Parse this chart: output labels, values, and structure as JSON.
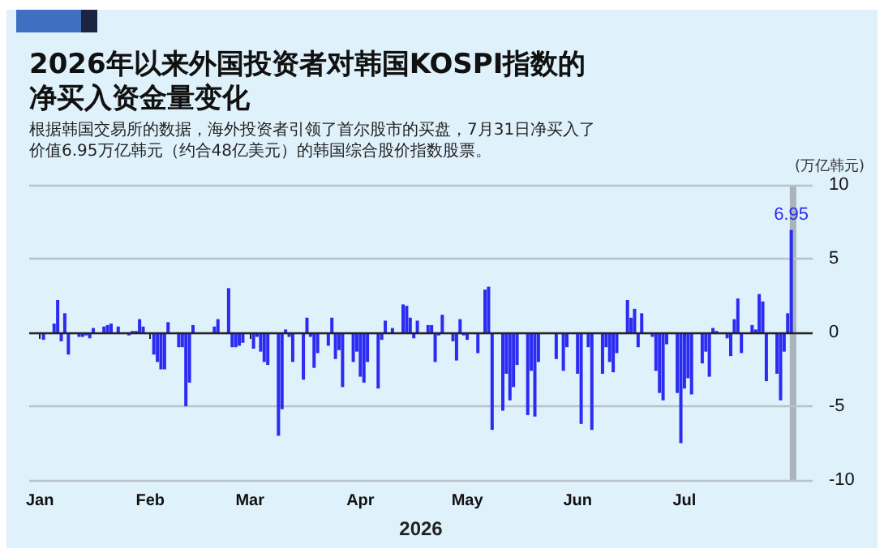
{
  "chart_data": {
    "type": "bar",
    "title": "2026年以来外国投资者对韩国KOSPI指数的净买入资金量变化",
    "subtitle": "根据韩国交易所的数据，海外投资者引领了首尔股市的买盘，7月31日净买入了价值6.95万亿韩元（约合48亿美元）的韩国综合股价指数股票。",
    "ylabel": "(万亿韩元)",
    "xlabel": "2026",
    "x": [
      "2026-01-02",
      "2026-01-05",
      "2026-01-06",
      "2026-01-07",
      "2026-01-08",
      "2026-01-09",
      "2026-01-12",
      "2026-01-13",
      "2026-01-14",
      "2026-01-15",
      "2026-01-16",
      "2026-01-19",
      "2026-01-20",
      "2026-01-21",
      "2026-01-22",
      "2026-01-23",
      "2026-01-26",
      "2026-01-27",
      "2026-01-28",
      "2026-01-29",
      "2026-01-30",
      "2026-02-02",
      "2026-02-03",
      "2026-02-04",
      "2026-02-05",
      "2026-02-06",
      "2026-02-09",
      "2026-02-10",
      "2026-02-11",
      "2026-02-12",
      "2026-02-13",
      "2026-02-19",
      "2026-02-20",
      "2026-02-23",
      "2026-02-24",
      "2026-02-25",
      "2026-02-26",
      "2026-02-27",
      "2026-03-02",
      "2026-03-03",
      "2026-03-04",
      "2026-03-05",
      "2026-03-06",
      "2026-03-09",
      "2026-03-10",
      "2026-03-11",
      "2026-03-12",
      "2026-03-13",
      "2026-03-16",
      "2026-03-17",
      "2026-03-18",
      "2026-03-19",
      "2026-03-20",
      "2026-03-23",
      "2026-03-24",
      "2026-03-25",
      "2026-03-26",
      "2026-03-27",
      "2026-03-30",
      "2026-03-31",
      "2026-04-01",
      "2026-04-02",
      "2026-04-03",
      "2026-04-06",
      "2026-04-07",
      "2026-04-08",
      "2026-04-09",
      "2026-04-10",
      "2026-04-13",
      "2026-04-14",
      "2026-04-15",
      "2026-04-16",
      "2026-04-17",
      "2026-04-20",
      "2026-04-21",
      "2026-04-22",
      "2026-04-23",
      "2026-04-24",
      "2026-04-27",
      "2026-04-28",
      "2026-04-29",
      "2026-04-30",
      "2026-05-01",
      "2026-05-04",
      "2026-05-06",
      "2026-05-07",
      "2026-05-08",
      "2026-05-11",
      "2026-05-12",
      "2026-05-13",
      "2026-05-14",
      "2026-05-15",
      "2026-05-18",
      "2026-05-19",
      "2026-05-20",
      "2026-05-21",
      "2026-05-22",
      "2026-05-26",
      "2026-05-27",
      "2026-05-28",
      "2026-05-29",
      "2026-06-01",
      "2026-06-02",
      "2026-06-04",
      "2026-06-05",
      "2026-06-08",
      "2026-06-09",
      "2026-06-10",
      "2026-06-11",
      "2026-06-12",
      "2026-06-15",
      "2026-06-16",
      "2026-06-17",
      "2026-06-18",
      "2026-06-19",
      "2026-06-22",
      "2026-06-23",
      "2026-06-24",
      "2026-06-25",
      "2026-06-26",
      "2026-06-29",
      "2026-06-30",
      "2026-07-01",
      "2026-07-02",
      "2026-07-03",
      "2026-07-06",
      "2026-07-07",
      "2026-07-08",
      "2026-07-09",
      "2026-07-10",
      "2026-07-13",
      "2026-07-14",
      "2026-07-15",
      "2026-07-16",
      "2026-07-17",
      "2026-07-20",
      "2026-07-21",
      "2026-07-22",
      "2026-07-23",
      "2026-07-24",
      "2026-07-27",
      "2026-07-28",
      "2026-07-29",
      "2026-07-30",
      "2026-07-31"
    ],
    "values": [
      -0.5,
      0.6,
      2.2,
      -0.6,
      1.3,
      -1.5,
      -0.3,
      -0.3,
      -0.2,
      -0.4,
      0.3,
      0.4,
      0.5,
      0.6,
      0,
      0.4,
      -0.2,
      0.1,
      0.1,
      0.9,
      0.4,
      -1.5,
      -2,
      -2.5,
      -2.5,
      0.7,
      -1,
      -1,
      -5,
      -3.4,
      0.5,
      0.4,
      0.9,
      3,
      -1,
      -1,
      -0.9,
      -0.7,
      -1.1,
      -0.3,
      -1.3,
      -2,
      -2.2,
      -7,
      -5.2,
      0.2,
      -0.3,
      -2,
      -3.2,
      1,
      -0.3,
      -2.4,
      -1.4,
      -0.9,
      1,
      -1.8,
      -1.2,
      -3.7,
      -2,
      -1.3,
      -3,
      -3.4,
      -2,
      -3.8,
      -0.5,
      0.8,
      -0.1,
      0.3,
      1.9,
      1.8,
      1,
      -0.4,
      0.8,
      0.5,
      0.5,
      -2,
      -0.2,
      1.2,
      -0.6,
      -1.9,
      0.9,
      -0.2,
      -0.5,
      -1.4,
      2.9,
      3.1,
      -6.6,
      -5.3,
      -2.8,
      -4.6,
      -3.7,
      -2.2,
      -5.6,
      -2.6,
      -5.7,
      -2,
      -0.1,
      -1.8,
      -0.1,
      -2.6,
      -1,
      -2.8,
      -6.2,
      -1,
      -6.6,
      -2.8,
      -1,
      -2,
      -2.7,
      -1.4,
      2.2,
      1,
      1.6,
      -1,
      1.3,
      -0.3,
      -2.6,
      -4.1,
      -4.6,
      -0.8,
      -4.1,
      -7.5,
      -3.8,
      -3.1,
      -4.2,
      -2.1,
      -1.3,
      -3,
      0.3,
      0.1,
      -0.4,
      -1.6,
      0.9,
      2.3,
      -1.4,
      0.5,
      0.2,
      2.6,
      2.1,
      -3.3,
      -2.8,
      -4.6,
      -1.3,
      1.3,
      6.95
    ],
    "value_labels": [
      null,
      null,
      null,
      null,
      null,
      null,
      null,
      null,
      null,
      null,
      null,
      null,
      null,
      null,
      null,
      null,
      null,
      null,
      null,
      null,
      null,
      null,
      null,
      null,
      null,
      null,
      null,
      null,
      null,
      null,
      null,
      null,
      null,
      null,
      null,
      null,
      null,
      null,
      null,
      null,
      null,
      null,
      null,
      null,
      null,
      null,
      null,
      null,
      null,
      null,
      null,
      null,
      null,
      null,
      null,
      null,
      null,
      null,
      null,
      null,
      null,
      null,
      null,
      null,
      null,
      null,
      null,
      null,
      null,
      null,
      null,
      null,
      null,
      null,
      null,
      null,
      null,
      null,
      null,
      null,
      null,
      null,
      null,
      null,
      null,
      null,
      null,
      null,
      null,
      null,
      null,
      null,
      null,
      null,
      null,
      null,
      null,
      null,
      null,
      null,
      null,
      null,
      null,
      null,
      null,
      null,
      null,
      null,
      null,
      null,
      null,
      null,
      null,
      null,
      null,
      null,
      null,
      null,
      null,
      null,
      null,
      null,
      null,
      null,
      null,
      null,
      null,
      null,
      null,
      null,
      null,
      null,
      null,
      null,
      null,
      null,
      null,
      null,
      null,
      null,
      null,
      null,
      null,
      null,
      "6.95"
    ],
    "color": "#2b2bf2",
    "xlim": [
      "2025-12-29",
      "2026-08-06"
    ],
    "xticks": [
      {
        "value": "2026-01-01",
        "label": "Jan"
      },
      {
        "value": "2026-02-01",
        "label": "Feb"
      },
      {
        "value": "2026-03-01",
        "label": "Mar"
      },
      {
        "value": "2026-04-01",
        "label": "Apr"
      },
      {
        "value": "2026-05-01",
        "label": "May"
      },
      {
        "value": "2026-06-01",
        "label": "Jun"
      },
      {
        "value": "2026-07-01",
        "label": "Jul"
      }
    ],
    "ylim": [
      -10,
      10
    ],
    "yticks": [
      -10,
      -5,
      0,
      5,
      10
    ],
    "grid": "y",
    "bands": [
      {
        "axis": "x",
        "from": "2026-07-30T14:00",
        "to": "2026-08-01T10:00",
        "color": "#a9b4bb"
      }
    ]
  }
}
